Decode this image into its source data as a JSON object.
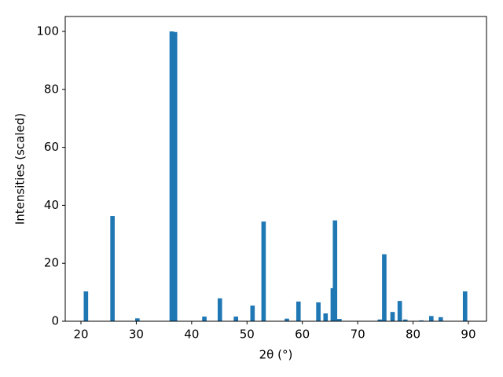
{
  "chart_data": {
    "type": "bar",
    "x": [
      20.9,
      25.7,
      30.2,
      36.4,
      37.0,
      42.3,
      45.1,
      48.0,
      51.0,
      53.0,
      57.2,
      59.3,
      62.9,
      64.2,
      65.5,
      65.9,
      66.7,
      74.0,
      74.8,
      76.3,
      77.6,
      78.6,
      81.5,
      83.3,
      85.0,
      89.4
    ],
    "values": [
      10.3,
      36.3,
      1.0,
      100,
      99.8,
      1.6,
      7.9,
      1.6,
      5.4,
      34.4,
      0.9,
      6.8,
      6.5,
      2.7,
      11.4,
      34.8,
      0.8,
      0.6,
      23.1,
      3.2,
      7.0,
      0.6,
      0.3,
      1.8,
      1.4,
      10.3
    ],
    "color": "#1f77b4",
    "xlabel": "2θ (°)",
    "ylabel": "Intensities (scaled)",
    "xlim": [
      17.16,
      93.27
    ],
    "ylim": [
      0,
      105.15
    ],
    "xticks": [
      20,
      30,
      40,
      50,
      60,
      70,
      80,
      90
    ],
    "yticks": [
      0,
      20,
      40,
      60,
      80,
      100
    ],
    "grid": false
  }
}
